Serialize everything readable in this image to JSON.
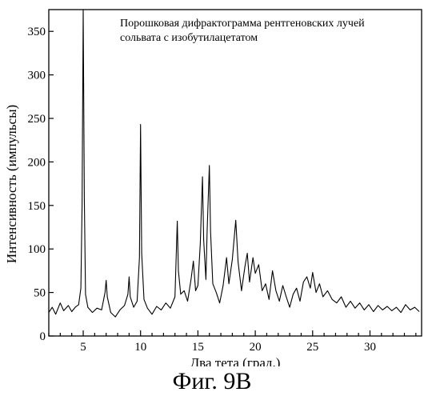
{
  "chart_data": {
    "type": "line",
    "title": "",
    "annotation": [
      "Порошковая дифрактограмма рентгеновских лучей",
      "сольвата с изобутилацетатом"
    ],
    "xlabel": "Два тета (град.)",
    "ylabel": "Интенсивность (импульсы)",
    "xlim": [
      2,
      34.5
    ],
    "ylim": [
      0,
      375
    ],
    "xticks": [
      5,
      10,
      15,
      20,
      25,
      30
    ],
    "yticks": [
      0,
      50,
      100,
      150,
      200,
      250,
      300,
      350
    ],
    "grid": false,
    "legend": "none",
    "series": [
      {
        "values": [
          [
            2.0,
            27
          ],
          [
            2.3,
            33
          ],
          [
            2.6,
            25
          ],
          [
            3.0,
            38
          ],
          [
            3.3,
            29
          ],
          [
            3.7,
            35
          ],
          [
            4.0,
            28
          ],
          [
            4.3,
            33
          ],
          [
            4.6,
            36
          ],
          [
            4.8,
            55
          ],
          [
            4.9,
            150
          ],
          [
            5.0,
            375
          ],
          [
            5.1,
            160
          ],
          [
            5.2,
            48
          ],
          [
            5.4,
            33
          ],
          [
            5.8,
            27
          ],
          [
            6.2,
            32
          ],
          [
            6.6,
            30
          ],
          [
            6.9,
            50
          ],
          [
            7.0,
            64
          ],
          [
            7.1,
            45
          ],
          [
            7.4,
            27
          ],
          [
            7.8,
            22
          ],
          [
            8.2,
            30
          ],
          [
            8.6,
            35
          ],
          [
            8.9,
            48
          ],
          [
            9.0,
            68
          ],
          [
            9.1,
            45
          ],
          [
            9.4,
            33
          ],
          [
            9.7,
            40
          ],
          [
            9.9,
            90
          ],
          [
            10.0,
            243
          ],
          [
            10.1,
            95
          ],
          [
            10.3,
            42
          ],
          [
            10.6,
            32
          ],
          [
            11.0,
            25
          ],
          [
            11.4,
            34
          ],
          [
            11.8,
            30
          ],
          [
            12.2,
            38
          ],
          [
            12.6,
            32
          ],
          [
            13.0,
            45
          ],
          [
            13.1,
            90
          ],
          [
            13.2,
            132
          ],
          [
            13.3,
            75
          ],
          [
            13.5,
            48
          ],
          [
            13.8,
            52
          ],
          [
            14.1,
            40
          ],
          [
            14.4,
            65
          ],
          [
            14.6,
            86
          ],
          [
            14.8,
            52
          ],
          [
            15.0,
            58
          ],
          [
            15.2,
            105
          ],
          [
            15.4,
            183
          ],
          [
            15.5,
            110
          ],
          [
            15.7,
            65
          ],
          [
            15.8,
            120
          ],
          [
            16.0,
            196
          ],
          [
            16.1,
            120
          ],
          [
            16.3,
            60
          ],
          [
            16.6,
            50
          ],
          [
            16.9,
            38
          ],
          [
            17.2,
            58
          ],
          [
            17.5,
            90
          ],
          [
            17.7,
            60
          ],
          [
            18.0,
            88
          ],
          [
            18.3,
            133
          ],
          [
            18.5,
            85
          ],
          [
            18.8,
            52
          ],
          [
            19.1,
            80
          ],
          [
            19.3,
            95
          ],
          [
            19.5,
            62
          ],
          [
            19.8,
            90
          ],
          [
            20.0,
            72
          ],
          [
            20.3,
            82
          ],
          [
            20.6,
            52
          ],
          [
            20.9,
            60
          ],
          [
            21.2,
            42
          ],
          [
            21.5,
            75
          ],
          [
            21.8,
            52
          ],
          [
            22.1,
            40
          ],
          [
            22.4,
            58
          ],
          [
            22.7,
            45
          ],
          [
            23.0,
            33
          ],
          [
            23.3,
            48
          ],
          [
            23.6,
            55
          ],
          [
            23.9,
            40
          ],
          [
            24.2,
            62
          ],
          [
            24.5,
            68
          ],
          [
            24.8,
            55
          ],
          [
            25.0,
            73
          ],
          [
            25.3,
            50
          ],
          [
            25.6,
            60
          ],
          [
            25.9,
            45
          ],
          [
            26.3,
            52
          ],
          [
            26.7,
            42
          ],
          [
            27.1,
            38
          ],
          [
            27.5,
            45
          ],
          [
            27.9,
            33
          ],
          [
            28.3,
            40
          ],
          [
            28.7,
            32
          ],
          [
            29.1,
            38
          ],
          [
            29.5,
            30
          ],
          [
            29.9,
            36
          ],
          [
            30.3,
            28
          ],
          [
            30.7,
            35
          ],
          [
            31.1,
            30
          ],
          [
            31.5,
            34
          ],
          [
            31.9,
            29
          ],
          [
            32.3,
            33
          ],
          [
            32.7,
            27
          ],
          [
            33.1,
            36
          ],
          [
            33.5,
            30
          ],
          [
            33.9,
            33
          ],
          [
            34.3,
            28
          ]
        ]
      }
    ]
  },
  "figure": {
    "caption": "Фиг. 9В"
  }
}
